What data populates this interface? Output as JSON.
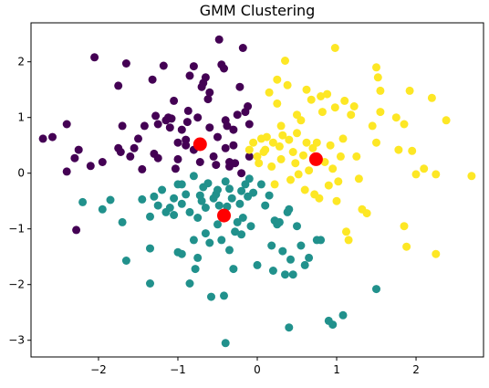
{
  "chart_data": {
    "type": "scatter",
    "title": "GMM Clustering",
    "xlabel": "",
    "ylabel": "",
    "xlim": [
      -2.85,
      2.85
    ],
    "ylim": [
      -3.3,
      2.7
    ],
    "x_ticks": [
      -2,
      -1,
      0,
      1,
      2
    ],
    "y_ticks": [
      -3,
      -2,
      -1,
      0,
      1,
      2
    ],
    "grid": false,
    "legend": "none",
    "colors": {
      "purple": "#440154",
      "teal": "#21918c",
      "yellow": "#fde725",
      "center": "#ff0000"
    },
    "series": [
      {
        "color": "#440154",
        "points": [
          [
            -2.7,
            0.62
          ],
          [
            -2.58,
            0.65
          ],
          [
            -2.4,
            0.88
          ],
          [
            -2.4,
            0.03
          ],
          [
            -2.25,
            0.42
          ],
          [
            -2.3,
            0.27
          ],
          [
            -2.1,
            0.13
          ],
          [
            -2.28,
            -1.02
          ],
          [
            -2.05,
            2.08
          ],
          [
            -1.95,
            0.2
          ],
          [
            -1.75,
            1.57
          ],
          [
            -1.7,
            0.85
          ],
          [
            -1.65,
            1.97
          ],
          [
            -1.6,
            0.3
          ],
          [
            -1.75,
            0.45
          ],
          [
            -1.72,
            0.38
          ],
          [
            -1.55,
            0.45
          ],
          [
            -1.5,
            0.62
          ],
          [
            -1.45,
            0.07
          ],
          [
            -1.42,
            0.85
          ],
          [
            -1.3,
            0.35
          ],
          [
            -1.32,
            1.68
          ],
          [
            -1.28,
            1.03
          ],
          [
            -1.25,
            0.88
          ],
          [
            -1.25,
            0.27
          ],
          [
            -1.18,
            1.93
          ],
          [
            -1.15,
            0.95
          ],
          [
            -1.12,
            1.0
          ],
          [
            -1.1,
            0.82
          ],
          [
            -1.0,
            0.25
          ],
          [
            -1.05,
            1.3
          ],
          [
            -1.08,
            0.98
          ],
          [
            -1.0,
            0.55
          ],
          [
            -1.03,
            0.08
          ],
          [
            -0.95,
            0.78
          ],
          [
            -0.9,
            0.6
          ],
          [
            -0.87,
            1.12
          ],
          [
            -0.85,
            1.75
          ],
          [
            -0.88,
            0.92
          ],
          [
            -0.8,
            0.42
          ],
          [
            -0.8,
            1.92
          ],
          [
            -0.75,
            1.0
          ],
          [
            -0.7,
            1.55
          ],
          [
            -0.68,
            1.62
          ],
          [
            -0.72,
            0.2
          ],
          [
            -0.65,
            1.72
          ],
          [
            -0.62,
            1.33
          ],
          [
            -0.6,
            1.45
          ],
          [
            -0.55,
            0.3
          ],
          [
            -0.52,
            0.15
          ],
          [
            -0.5,
            0.65
          ],
          [
            -0.48,
            2.4
          ],
          [
            -0.45,
            1.95
          ],
          [
            -0.42,
            1.88
          ],
          [
            -0.4,
            0.95
          ],
          [
            -0.38,
            0.85
          ],
          [
            -0.35,
            0.2
          ],
          [
            -0.35,
            0.12
          ],
          [
            -0.3,
            0.5
          ],
          [
            -0.3,
            0.78
          ],
          [
            -0.28,
            0.18
          ],
          [
            -0.25,
            1.05
          ],
          [
            -0.22,
            1.55
          ],
          [
            -0.2,
            0.0
          ],
          [
            -0.18,
            2.25
          ],
          [
            -0.15,
            1.1
          ],
          [
            -0.12,
            1.2
          ],
          [
            -0.1,
            0.3
          ],
          [
            -0.1,
            0.88
          ],
          [
            -0.4,
            0.45
          ],
          [
            -0.6,
            0.82
          ],
          [
            -0.9,
            0.5
          ]
        ]
      },
      {
        "color": "#21918c",
        "points": [
          [
            -2.2,
            -0.52
          ],
          [
            -1.95,
            -0.65
          ],
          [
            -1.85,
            -0.48
          ],
          [
            -1.7,
            -0.88
          ],
          [
            -1.65,
            -1.57
          ],
          [
            -1.45,
            -0.47
          ],
          [
            -1.35,
            -0.78
          ],
          [
            -1.35,
            -1.35
          ],
          [
            -1.35,
            -1.98
          ],
          [
            -1.3,
            -0.42
          ],
          [
            -1.25,
            -0.58
          ],
          [
            -1.2,
            -0.3
          ],
          [
            -1.15,
            -0.7
          ],
          [
            -1.1,
            -0.62
          ],
          [
            -1.05,
            -0.45
          ],
          [
            -1.05,
            -0.75
          ],
          [
            -1.0,
            -1.42
          ],
          [
            -1.0,
            -0.2
          ],
          [
            -0.95,
            -1.45
          ],
          [
            -0.95,
            -0.55
          ],
          [
            -0.9,
            -0.38
          ],
          [
            -0.85,
            -0.7
          ],
          [
            -0.85,
            -1.98
          ],
          [
            -0.8,
            -0.05
          ],
          [
            -0.8,
            -1.2
          ],
          [
            -0.78,
            -1.72
          ],
          [
            -0.75,
            -0.8
          ],
          [
            -0.75,
            -1.52
          ],
          [
            -0.72,
            -0.4
          ],
          [
            -0.7,
            -0.5
          ],
          [
            -0.68,
            -0.25
          ],
          [
            -0.65,
            -0.62
          ],
          [
            -0.65,
            -1.08
          ],
          [
            -0.62,
            -0.18
          ],
          [
            -0.6,
            -1.25
          ],
          [
            -0.58,
            -2.22
          ],
          [
            -0.55,
            -0.45
          ],
          [
            -0.52,
            -0.38
          ],
          [
            -0.5,
            -0.3
          ],
          [
            -0.48,
            -0.58
          ],
          [
            -0.45,
            -1.2
          ],
          [
            -0.42,
            -2.2
          ],
          [
            -0.4,
            -0.15
          ],
          [
            -0.38,
            -0.6
          ],
          [
            -0.35,
            -1.38
          ],
          [
            -0.32,
            -0.45
          ],
          [
            -0.3,
            -1.72
          ],
          [
            -0.28,
            -1.05
          ],
          [
            -0.25,
            -0.88
          ],
          [
            -0.22,
            -0.55
          ],
          [
            -0.2,
            -0.32
          ],
          [
            -0.18,
            -0.8
          ],
          [
            -0.15,
            -0.2
          ],
          [
            -0.12,
            -0.42
          ],
          [
            -0.1,
            -0.1
          ],
          [
            -0.08,
            -0.95
          ],
          [
            -0.05,
            -0.35
          ],
          [
            0.0,
            -1.65
          ],
          [
            0.05,
            -0.2
          ],
          [
            0.1,
            -0.58
          ],
          [
            0.15,
            -0.4
          ],
          [
            0.18,
            -1.3
          ],
          [
            0.2,
            -1.75
          ],
          [
            0.22,
            -0.85
          ],
          [
            0.25,
            -0.92
          ],
          [
            0.28,
            -0.88
          ],
          [
            0.32,
            -1.4
          ],
          [
            0.35,
            -1.82
          ],
          [
            0.38,
            -0.7
          ],
          [
            0.4,
            -0.65
          ],
          [
            0.42,
            -1.55
          ],
          [
            0.45,
            -1.82
          ],
          [
            0.5,
            -0.95
          ],
          [
            0.55,
            -1.3
          ],
          [
            0.6,
            -1.65
          ],
          [
            0.65,
            -1.52
          ],
          [
            0.75,
            -1.2
          ],
          [
            0.8,
            -1.2
          ],
          [
            0.9,
            -2.65
          ],
          [
            0.95,
            -2.72
          ],
          [
            1.08,
            -2.55
          ],
          [
            1.5,
            -2.08
          ],
          [
            0.4,
            -2.77
          ],
          [
            -0.4,
            -3.05
          ],
          [
            -0.2,
            -1.1
          ],
          [
            -0.5,
            -0.92
          ],
          [
            -0.95,
            -0.2
          ],
          [
            -0.35,
            -0.28
          ]
        ]
      },
      {
        "color": "#fde725",
        "points": [
          [
            -0.1,
            0.42
          ],
          [
            -0.05,
            0.55
          ],
          [
            0.0,
            0.3
          ],
          [
            0.02,
            0.18
          ],
          [
            0.05,
            0.62
          ],
          [
            0.08,
            0.38
          ],
          [
            0.1,
            0.42
          ],
          [
            0.12,
            0.65
          ],
          [
            0.15,
            1.45
          ],
          [
            0.18,
            0.12
          ],
          [
            0.2,
            0.55
          ],
          [
            0.22,
            -0.2
          ],
          [
            0.25,
            1.25
          ],
          [
            0.28,
            0.48
          ],
          [
            0.3,
            0.25
          ],
          [
            0.32,
            0.68
          ],
          [
            0.35,
            2.02
          ],
          [
            0.38,
            1.58
          ],
          [
            0.4,
            0.6
          ],
          [
            0.42,
            -0.12
          ],
          [
            0.45,
            0.38
          ],
          [
            0.48,
            0.18
          ],
          [
            0.5,
            0.72
          ],
          [
            0.52,
            -0.02
          ],
          [
            0.55,
            0.95
          ],
          [
            0.58,
            0.32
          ],
          [
            0.6,
            -0.3
          ],
          [
            0.62,
            0.55
          ],
          [
            0.65,
            0.05
          ],
          [
            0.68,
            1.32
          ],
          [
            0.7,
            0.45
          ],
          [
            0.72,
            -0.38
          ],
          [
            0.75,
            0.55
          ],
          [
            0.78,
            -0.45
          ],
          [
            0.8,
            1.38
          ],
          [
            0.82,
            1.1
          ],
          [
            0.85,
            0.2
          ],
          [
            0.88,
            1.42
          ],
          [
            0.9,
            -0.22
          ],
          [
            0.92,
            0.5
          ],
          [
            0.95,
            0.08
          ],
          [
            0.98,
            2.25
          ],
          [
            1.0,
            -0.5
          ],
          [
            1.02,
            -0.15
          ],
          [
            1.05,
            0.3
          ],
          [
            1.08,
            0.62
          ],
          [
            1.1,
            1.3
          ],
          [
            1.12,
            -1.05
          ],
          [
            1.15,
            -1.2
          ],
          [
            1.18,
            1.05
          ],
          [
            1.22,
            1.2
          ],
          [
            1.25,
            0.3
          ],
          [
            1.28,
            -0.1
          ],
          [
            1.32,
            -0.65
          ],
          [
            1.38,
            -0.72
          ],
          [
            1.45,
            0.85
          ],
          [
            1.5,
            0.55
          ],
          [
            1.55,
            1.1
          ],
          [
            1.5,
            1.9
          ],
          [
            1.52,
            1.72
          ],
          [
            1.55,
            1.48
          ],
          [
            1.75,
            1.0
          ],
          [
            1.78,
            0.42
          ],
          [
            1.85,
            0.88
          ],
          [
            1.85,
            -0.95
          ],
          [
            1.88,
            -1.32
          ],
          [
            1.92,
            1.48
          ],
          [
            1.95,
            0.4
          ],
          [
            2.0,
            -0.02
          ],
          [
            2.1,
            0.08
          ],
          [
            2.2,
            1.35
          ],
          [
            2.25,
            -0.02
          ],
          [
            2.25,
            -1.45
          ],
          [
            2.38,
            0.95
          ],
          [
            2.7,
            -0.05
          ],
          [
            0.25,
            1.68
          ],
          [
            0.5,
            1.05
          ],
          [
            0.3,
            0.85
          ],
          [
            0.62,
            1.5
          ],
          [
            0.98,
            1.18
          ]
        ]
      }
    ],
    "centers": [
      [
        -0.72,
        0.52
      ],
      [
        0.74,
        0.25
      ],
      [
        -0.42,
        -0.76
      ]
    ]
  }
}
